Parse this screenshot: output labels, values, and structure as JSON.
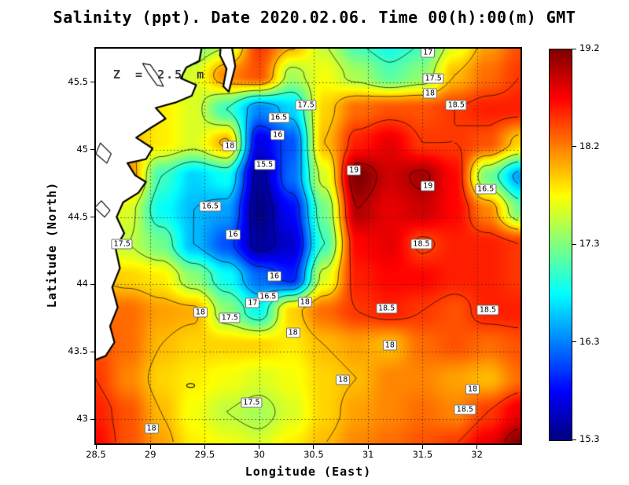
{
  "title": "Salinity (ppt). Date 2020.02.06. Time 00(h):00(m) GMT",
  "annotation": "Z = 2.5 m",
  "axes": {
    "xlabel": "Longitude (East)",
    "ylabel": "Latitude (North)",
    "x_ticks": {
      "values": [
        28.5,
        29,
        29.5,
        30,
        30.5,
        31,
        31.5,
        32
      ],
      "labels": [
        "28.5",
        "29",
        "29.5",
        "30",
        "30.5",
        "31",
        "31.5",
        "32"
      ]
    },
    "y_ticks": {
      "values": [
        43,
        43.5,
        44,
        44.5,
        45,
        45.5
      ],
      "labels": [
        "43",
        "43.5",
        "44",
        "44.5",
        "45",
        "45.5"
      ]
    }
  },
  "colorbar": {
    "tick_labels": [
      "19.2",
      "18.2",
      "17.3",
      "16.3",
      "15.3"
    ]
  },
  "chart_data": {
    "type": "heatmap",
    "variable": "Salinity (ppt)",
    "vmin": 15.3,
    "vmax": 19.2,
    "lon_range": [
      28.5,
      32.4
    ],
    "lat_range": [
      42.82,
      45.75
    ],
    "contour_levels": [
      15.5,
      16,
      16.5,
      17,
      17.5,
      18,
      18.5,
      19
    ],
    "grid_lons": [
      28.5,
      28.8,
      29.1,
      29.4,
      29.7,
      30.0,
      30.3,
      30.6,
      30.9,
      31.2,
      31.5,
      31.8,
      32.1,
      32.4
    ],
    "grid_lats": [
      45.8,
      45.55,
      45.3,
      45.05,
      44.8,
      44.55,
      44.3,
      44.05,
      43.8,
      43.55,
      43.3,
      43.05,
      42.8
    ],
    "salinity": [
      [
        17.5,
        17.3,
        17.0,
        17.2,
        17.4,
        18.5,
        18.1,
        17.5,
        17.0,
        16.8,
        17.0,
        17.6,
        18.1,
        18.4
      ],
      [
        17.8,
        17.5,
        17.2,
        17.6,
        18.2,
        18.4,
        17.4,
        17.7,
        17.4,
        17.1,
        17.3,
        18.0,
        18.3,
        18.5
      ],
      [
        18.0,
        18.0,
        17.8,
        17.6,
        17.0,
        16.3,
        16.6,
        17.9,
        18.3,
        18.4,
        18.4,
        18.5,
        18.6,
        18.6
      ],
      [
        18.0,
        18.0,
        17.8,
        17.6,
        18.05,
        15.7,
        16.1,
        18.0,
        18.6,
        18.8,
        18.5,
        18.5,
        18.4,
        17.9
      ],
      [
        18.0,
        18.2,
        17.0,
        16.6,
        16.8,
        15.4,
        16.2,
        17.6,
        19.2,
        18.9,
        19.05,
        18.7,
        17.2,
        16.4
      ],
      [
        17.8,
        17.6,
        16.8,
        16.5,
        16.4,
        15.3,
        15.8,
        17.2,
        19.0,
        18.8,
        18.9,
        18.7,
        18.2,
        17.2
      ],
      [
        17.6,
        17.5,
        17.2,
        16.5,
        16.1,
        15.4,
        15.6,
        17.0,
        18.7,
        18.8,
        18.45,
        18.6,
        18.6,
        18.5
      ],
      [
        18.0,
        17.9,
        17.8,
        17.3,
        16.8,
        16.2,
        15.9,
        17.6,
        18.6,
        18.7,
        18.7,
        18.6,
        18.6,
        18.5
      ],
      [
        18.3,
        18.3,
        18.1,
        18.05,
        17.3,
        16.8,
        17.9,
        18.3,
        18.5,
        18.6,
        18.5,
        18.4,
        18.6,
        18.6
      ],
      [
        18.4,
        18.3,
        18.0,
        17.9,
        17.9,
        17.9,
        17.8,
        18.0,
        18.1,
        18.0,
        18.3,
        18.4,
        18.3,
        18.4
      ],
      [
        18.5,
        18.2,
        17.9,
        17.8,
        17.7,
        17.6,
        17.7,
        17.9,
        18.0,
        18.2,
        18.2,
        18.1,
        18.0,
        18.3
      ],
      [
        18.6,
        18.4,
        18.0,
        17.7,
        17.5,
        17.4,
        17.6,
        17.9,
        18.1,
        18.2,
        18.3,
        18.2,
        18.5,
        18.8
      ],
      [
        18.7,
        18.4,
        18.1,
        17.8,
        17.7,
        17.6,
        17.8,
        18.0,
        18.2,
        18.3,
        18.4,
        18.5,
        18.8,
        19.2
      ]
    ],
    "contour_labels": [
      {
        "t": "17",
        "lon": 31.55,
        "lat": 45.72
      },
      {
        "t": "17.5",
        "lon": 31.6,
        "lat": 45.53
      },
      {
        "t": "18",
        "lon": 31.57,
        "lat": 45.42
      },
      {
        "t": "18.5",
        "lon": 31.81,
        "lat": 45.33
      },
      {
        "t": "17.5",
        "lon": 30.43,
        "lat": 45.33
      },
      {
        "t": "16.5",
        "lon": 30.18,
        "lat": 45.24
      },
      {
        "t": "16",
        "lon": 30.17,
        "lat": 45.11
      },
      {
        "t": "18",
        "lon": 29.73,
        "lat": 45.03
      },
      {
        "t": "15.5",
        "lon": 30.05,
        "lat": 44.89
      },
      {
        "t": "19",
        "lon": 30.87,
        "lat": 44.85
      },
      {
        "t": "19",
        "lon": 31.55,
        "lat": 44.73
      },
      {
        "t": "16.5",
        "lon": 32.08,
        "lat": 44.71
      },
      {
        "t": "16.5",
        "lon": 29.55,
        "lat": 44.58
      },
      {
        "t": "16",
        "lon": 29.76,
        "lat": 44.37
      },
      {
        "t": "17.5",
        "lon": 28.74,
        "lat": 44.3
      },
      {
        "t": "18.5",
        "lon": 31.49,
        "lat": 44.3
      },
      {
        "t": "16",
        "lon": 30.14,
        "lat": 44.06
      },
      {
        "t": "16.5",
        "lon": 30.08,
        "lat": 43.91
      },
      {
        "t": "17",
        "lon": 29.94,
        "lat": 43.86
      },
      {
        "t": "18",
        "lon": 30.42,
        "lat": 43.87
      },
      {
        "t": "17.5",
        "lon": 29.73,
        "lat": 43.75
      },
      {
        "t": "18",
        "lon": 29.46,
        "lat": 43.79
      },
      {
        "t": "18.5",
        "lon": 31.17,
        "lat": 43.82
      },
      {
        "t": "18.5",
        "lon": 32.1,
        "lat": 43.81
      },
      {
        "t": "18",
        "lon": 30.31,
        "lat": 43.64
      },
      {
        "t": "18",
        "lon": 31.2,
        "lat": 43.55
      },
      {
        "t": "18",
        "lon": 30.77,
        "lat": 43.29
      },
      {
        "t": "18",
        "lon": 31.96,
        "lat": 43.22
      },
      {
        "t": "17.5",
        "lon": 29.93,
        "lat": 43.12
      },
      {
        "t": "18.5",
        "lon": 31.89,
        "lat": 43.07
      },
      {
        "t": "18",
        "lon": 29.01,
        "lat": 42.93
      }
    ],
    "coast_polygons": [
      [
        [
          29.48,
          45.8
        ],
        [
          29.45,
          45.66
        ],
        [
          29.33,
          45.61
        ],
        [
          29.28,
          45.53
        ],
        [
          29.42,
          45.48
        ],
        [
          29.38,
          45.4
        ],
        [
          29.23,
          45.35
        ],
        [
          29.05,
          45.31
        ],
        [
          29.14,
          45.23
        ],
        [
          29.0,
          45.16
        ],
        [
          28.87,
          45.09
        ],
        [
          29.02,
          45.01
        ],
        [
          28.96,
          44.93
        ],
        [
          28.79,
          44.9
        ],
        [
          28.86,
          44.81
        ],
        [
          28.96,
          44.76
        ],
        [
          28.89,
          44.68
        ],
        [
          28.75,
          44.61
        ],
        [
          28.69,
          44.5
        ],
        [
          28.76,
          44.38
        ],
        [
          28.68,
          44.27
        ],
        [
          28.72,
          44.12
        ],
        [
          28.65,
          43.98
        ],
        [
          28.7,
          43.83
        ],
        [
          28.63,
          43.69
        ],
        [
          28.67,
          43.57
        ],
        [
          28.59,
          43.47
        ],
        [
          28.4,
          43.41
        ],
        [
          28.4,
          45.8
        ]
      ],
      [
        [
          29.65,
          45.8
        ],
        [
          29.74,
          45.8
        ],
        [
          29.78,
          45.62
        ],
        [
          29.72,
          45.43
        ],
        [
          29.67,
          45.47
        ],
        [
          29.7,
          45.6
        ],
        [
          29.64,
          45.7
        ]
      ]
    ],
    "inland_waters": [
      [
        [
          29.0,
          45.63
        ],
        [
          29.07,
          45.55
        ],
        [
          29.12,
          45.47
        ],
        [
          29.06,
          45.48
        ],
        [
          28.98,
          45.57
        ],
        [
          28.93,
          45.64
        ]
      ],
      [
        [
          28.54,
          45.05
        ],
        [
          28.64,
          44.97
        ],
        [
          28.6,
          44.9
        ],
        [
          28.5,
          44.97
        ]
      ],
      [
        [
          28.55,
          44.62
        ],
        [
          28.63,
          44.55
        ],
        [
          28.58,
          44.5
        ],
        [
          28.49,
          44.57
        ]
      ]
    ],
    "islands": [
      {
        "lon": 29.37,
        "lat": 43.25,
        "rx": 5,
        "ry": 2.5
      }
    ]
  }
}
